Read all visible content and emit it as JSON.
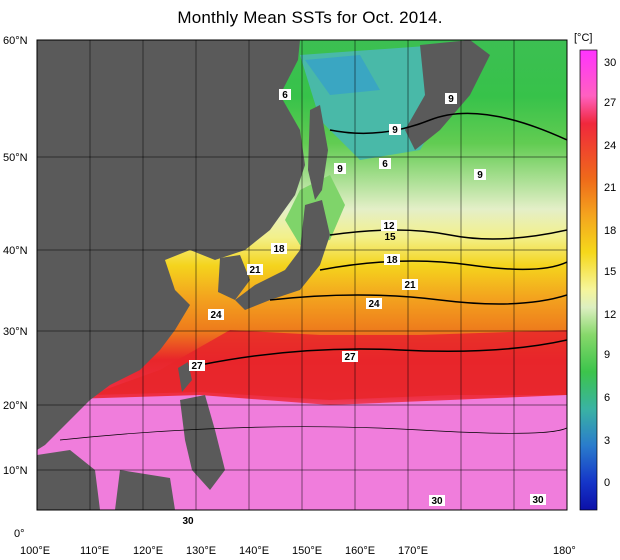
{
  "title": "Monthly Mean SSTs for Oct. 2014.",
  "colorbar": {
    "unit": "[°C]",
    "ticks": [
      "30",
      "27",
      "24",
      "21",
      "18",
      "15",
      "12",
      "9",
      "6",
      "3",
      "0"
    ]
  },
  "axes": {
    "lat_labels": [
      "60°N",
      "50°N",
      "40°N",
      "30°N",
      "20°N",
      "10°N",
      "0°"
    ],
    "lon_labels": [
      "100°E",
      "110°E",
      "120°E",
      "130°E",
      "140°E",
      "150°E",
      "160°E",
      "170°E",
      "180°"
    ]
  },
  "contour_labels": [
    {
      "text": "6"
    },
    {
      "text": "9"
    },
    {
      "text": "9"
    },
    {
      "text": "6"
    },
    {
      "text": "9"
    },
    {
      "text": "9"
    },
    {
      "text": "12"
    },
    {
      "text": "15"
    },
    {
      "text": "18"
    },
    {
      "text": "21"
    },
    {
      "text": "18"
    },
    {
      "text": "21"
    },
    {
      "text": "24"
    },
    {
      "text": "24"
    },
    {
      "text": "27"
    },
    {
      "text": "27"
    },
    {
      "text": "30"
    },
    {
      "text": "30"
    },
    {
      "text": "30"
    }
  ],
  "colors": {
    "land": "#5a5a5a",
    "warm_pool": "#f07ddc",
    "kuroshio": "#e8262a",
    "subtropical": "#f39a1f",
    "midlat": "#f6e21a",
    "front": "#e9f0c6",
    "subarctic": "#39c35a",
    "cold": "#48b8b8"
  }
}
